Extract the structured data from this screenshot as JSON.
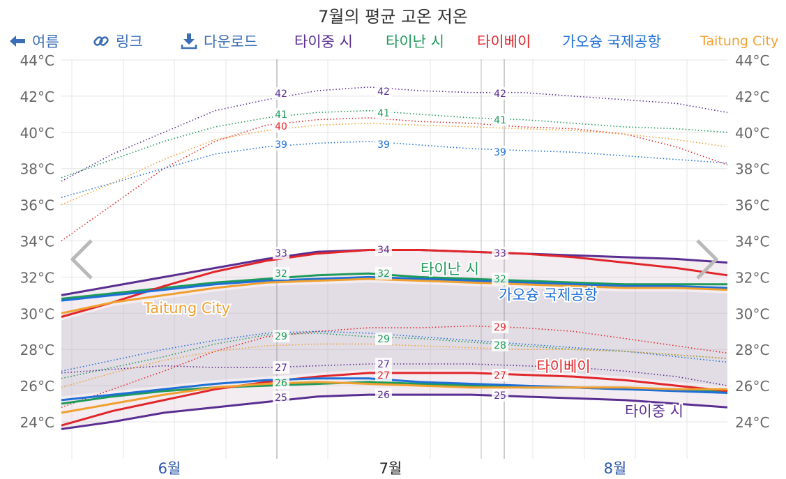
{
  "title": "7월의 평균 고온 저온",
  "toolbar": {
    "back_label": "여름",
    "link_label": "링크",
    "download_label": "다운로드"
  },
  "legend": [
    {
      "label": "타이중 시",
      "color": "#5a2e91"
    },
    {
      "label": "타이난 시",
      "color": "#1e9a5b"
    },
    {
      "label": "타이베이",
      "color": "#e0262b"
    },
    {
      "label": "가오슝 국제공항",
      "color": "#1f6fd6"
    },
    {
      "label": "Taitung City",
      "color": "#f0a030"
    }
  ],
  "chart_data": {
    "type": "line",
    "ylim": [
      23,
      44
    ],
    "y_ticks": [
      24,
      26,
      28,
      30,
      32,
      34,
      36,
      38,
      40,
      42,
      44
    ],
    "y_tick_labels": [
      "24°C",
      "26°C",
      "28°C",
      "30°C",
      "32°C",
      "34°C",
      "36°C",
      "38°C",
      "40°C",
      "42°C",
      "44°C"
    ],
    "month_labels": [
      "6월",
      "7월",
      "8월"
    ],
    "current_month": "7월",
    "x": [
      0,
      7,
      14,
      21,
      28,
      35,
      42,
      49,
      56,
      63,
      70,
      77,
      84,
      91
    ],
    "series": [
      {
        "name": "타이중 시",
        "color": "#5a2e91",
        "high": [
          31.0,
          31.5,
          32.0,
          32.5,
          33.0,
          33.4,
          33.5,
          33.5,
          33.4,
          33.3,
          33.2,
          33.1,
          33.0,
          32.8
        ],
        "low": [
          23.6,
          24.0,
          24.5,
          24.8,
          25.1,
          25.4,
          25.5,
          25.5,
          25.5,
          25.4,
          25.3,
          25.2,
          25.0,
          24.8
        ],
        "high_max": [
          37.3,
          38.8,
          40.0,
          41.2,
          41.8,
          42.3,
          42.5,
          42.3,
          42.2,
          42.2,
          42.0,
          41.8,
          41.6,
          41.1
        ],
        "low_min": [
          26.7,
          26.9,
          27.1,
          27.0,
          27.0,
          27.1,
          27.2,
          27.2,
          27.2,
          27.1,
          27.0,
          26.8,
          26.5,
          26.0
        ]
      },
      {
        "name": "타이난 시",
        "color": "#1e9a5b",
        "high": [
          30.8,
          31.1,
          31.4,
          31.7,
          31.9,
          32.1,
          32.2,
          32.0,
          31.9,
          31.8,
          31.7,
          31.6,
          31.6,
          31.6
        ],
        "low": [
          25.0,
          25.4,
          25.7,
          25.9,
          26.0,
          26.1,
          26.2,
          26.1,
          26.0,
          25.9,
          25.9,
          25.8,
          25.8,
          25.7
        ],
        "high_max": [
          37.5,
          38.5,
          39.5,
          40.3,
          40.8,
          41.1,
          41.2,
          41.0,
          40.8,
          40.7,
          40.5,
          40.3,
          40.2,
          40.0
        ],
        "low_min": [
          26.4,
          27.0,
          27.6,
          28.3,
          28.8,
          28.9,
          28.7,
          28.6,
          28.4,
          28.2,
          28.0,
          27.9,
          27.7,
          27.5
        ]
      },
      {
        "name": "타이베이",
        "color": "#e0262b",
        "high": [
          29.8,
          30.6,
          31.5,
          32.3,
          32.9,
          33.3,
          33.5,
          33.5,
          33.4,
          33.3,
          33.1,
          32.8,
          32.5,
          32.1
        ],
        "low": [
          23.8,
          24.6,
          25.2,
          25.8,
          26.2,
          26.5,
          26.7,
          26.7,
          26.7,
          26.6,
          26.5,
          26.3,
          26.0,
          25.7
        ],
        "high_max": [
          34.0,
          36.0,
          38.0,
          39.5,
          40.4,
          40.7,
          40.8,
          40.6,
          40.5,
          40.3,
          40.2,
          39.9,
          39.2,
          38.2
        ],
        "low_min": [
          24.8,
          25.8,
          26.8,
          27.9,
          28.7,
          29.0,
          29.2,
          29.2,
          29.3,
          29.2,
          29.0,
          28.6,
          28.2,
          27.8
        ]
      },
      {
        "name": "가오슝 국제공항",
        "color": "#1f6fd6",
        "high": [
          30.7,
          31.0,
          31.3,
          31.6,
          31.8,
          31.9,
          32.0,
          31.9,
          31.8,
          31.7,
          31.6,
          31.5,
          31.5,
          31.4
        ],
        "low": [
          25.2,
          25.5,
          25.8,
          26.1,
          26.3,
          26.4,
          26.4,
          26.2,
          26.1,
          26.0,
          25.9,
          25.8,
          25.7,
          25.6
        ],
        "high_max": [
          36.4,
          37.2,
          38.0,
          38.8,
          39.2,
          39.4,
          39.5,
          39.3,
          39.1,
          39.0,
          38.9,
          38.7,
          38.5,
          38.3
        ],
        "low_min": [
          26.8,
          27.4,
          28.0,
          28.5,
          28.9,
          29.0,
          28.9,
          28.7,
          28.5,
          28.3,
          28.1,
          27.9,
          27.6,
          27.3
        ]
      },
      {
        "name": "Taitung City",
        "color": "#f0a030",
        "high": [
          30.0,
          30.6,
          31.0,
          31.4,
          31.7,
          31.8,
          31.9,
          31.8,
          31.7,
          31.6,
          31.5,
          31.4,
          31.4,
          31.3
        ],
        "low": [
          24.5,
          25.0,
          25.5,
          25.9,
          26.1,
          26.2,
          26.1,
          26.0,
          25.9,
          25.9,
          25.9,
          25.9,
          25.8,
          25.8
        ],
        "high_max": [
          36.0,
          37.2,
          38.5,
          39.6,
          40.1,
          40.4,
          40.5,
          40.4,
          40.3,
          40.2,
          40.1,
          39.9,
          39.6,
          39.2
        ],
        "low_min": [
          25.9,
          26.7,
          27.4,
          27.9,
          28.2,
          28.3,
          28.3,
          28.2,
          28.1,
          28.0,
          28.0,
          27.9,
          27.7,
          27.5
        ]
      }
    ],
    "series_labels": [
      "Taitung City",
      "타이난 시",
      "가오슝 국제공항",
      "타이베이",
      "타이중 시"
    ],
    "data_labels": [
      {
        "text": "42",
        "series": 0
      },
      {
        "text": "42",
        "series": 0
      },
      {
        "text": "42",
        "series": 0
      },
      {
        "text": "41",
        "series": 1
      },
      {
        "text": "41",
        "series": 1
      },
      {
        "text": "41",
        "series": 1
      },
      {
        "text": "40",
        "series": 2
      },
      {
        "text": "39",
        "series": 3
      },
      {
        "text": "39",
        "series": 3
      },
      {
        "text": "39",
        "series": 3
      },
      {
        "text": "33",
        "series": 0
      },
      {
        "text": "34",
        "series": 0
      },
      {
        "text": "33",
        "series": 0
      },
      {
        "text": "32",
        "series": 1
      },
      {
        "text": "32",
        "series": 1
      },
      {
        "text": "32",
        "series": 1
      },
      {
        "text": "29",
        "series": 1
      },
      {
        "text": "29",
        "series": 1
      },
      {
        "text": "28",
        "series": 1
      },
      {
        "text": "29",
        "series": 2
      },
      {
        "text": "27",
        "series": 0
      },
      {
        "text": "27",
        "series": 0
      },
      {
        "text": "27",
        "series": 2
      },
      {
        "text": "27",
        "series": 2
      },
      {
        "text": "26",
        "series": 1
      },
      {
        "text": "25",
        "series": 0
      },
      {
        "text": "26",
        "series": 0
      },
      {
        "text": "25",
        "series": 0
      }
    ]
  }
}
